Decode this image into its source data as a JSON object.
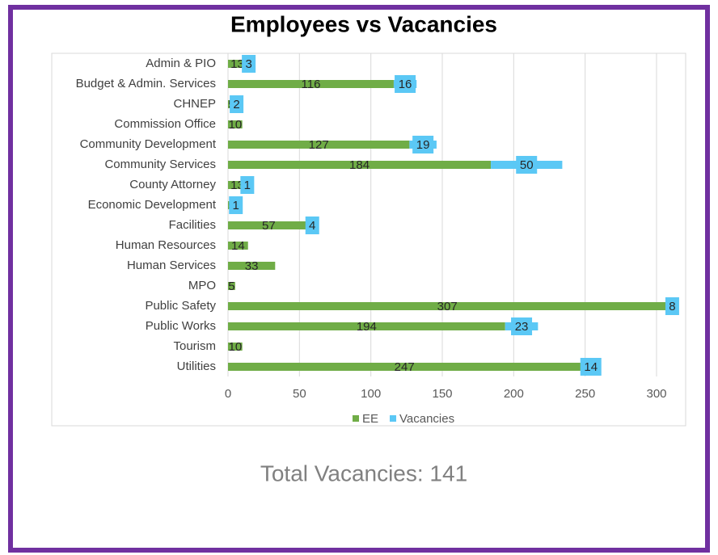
{
  "chart_data": {
    "type": "stacked-bar-horizontal",
    "title": "Employees vs Vacancies",
    "categories": [
      "Admin & PIO",
      "Budget & Admin. Services",
      "CHNEP",
      "Commission Office",
      "Community Development",
      "Community Services",
      "County Attorney",
      "Economic Development",
      "Facilities",
      "Human Resources",
      "Human Services",
      "MPO",
      "Public Safety",
      "Public Works",
      "Tourism",
      "Utilities"
    ],
    "series": [
      {
        "name": "EE",
        "color": "#70ad47",
        "values": [
          13,
          116,
          5,
          10,
          127,
          184,
          13,
          5,
          57,
          14,
          33,
          5,
          307,
          194,
          10,
          247
        ]
      },
      {
        "name": "Vacancies",
        "color": "#5bc8f5",
        "values": [
          3,
          16,
          2,
          null,
          19,
          50,
          1,
          1,
          4,
          null,
          null,
          null,
          8,
          23,
          null,
          14
        ]
      }
    ],
    "xlim": [
      0,
      320
    ],
    "xticks": [
      0,
      50,
      100,
      150,
      200,
      250,
      300
    ],
    "grid": true,
    "legend": "bottom",
    "annotation": "Total Vacancies: 141"
  }
}
